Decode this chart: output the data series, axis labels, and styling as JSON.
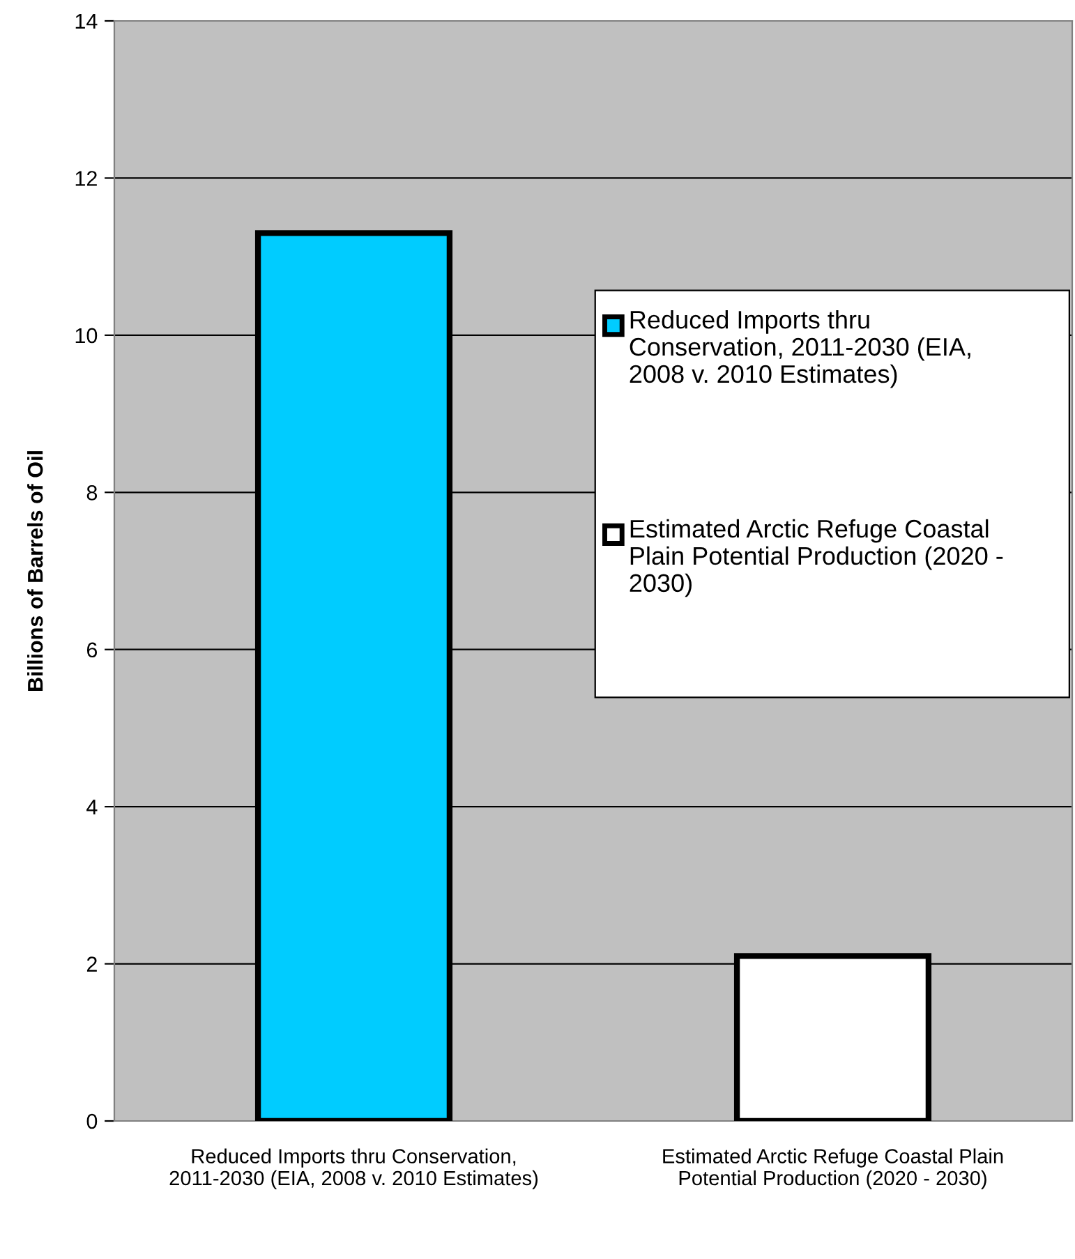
{
  "chart_data": {
    "type": "bar",
    "ylabel": "Billions of Barrels of Oil",
    "categories": [
      "Reduced Imports thru Conservation, 2011-2030 (EIA, 2008 v. 2010 Estimates)",
      "Estimated Arctic Refuge Coastal Plain Potential Production (2020 - 2030)"
    ],
    "series": [
      {
        "name": "Reduced Imports thru Conservation, 2011-2030 (EIA, 2008 v. 2010 Estimates)",
        "color": "#00ccff",
        "values": [
          11.3,
          null
        ]
      },
      {
        "name": "Estimated Arctic Refuge Coastal Plain Potential Production (2020 - 2030)",
        "color": "#ffffff",
        "values": [
          null,
          2.1
        ]
      }
    ],
    "ylim": [
      0,
      14
    ],
    "yticks": [
      0,
      2,
      4,
      6,
      8,
      10,
      12,
      14
    ],
    "grid": "y",
    "legend": "right"
  }
}
